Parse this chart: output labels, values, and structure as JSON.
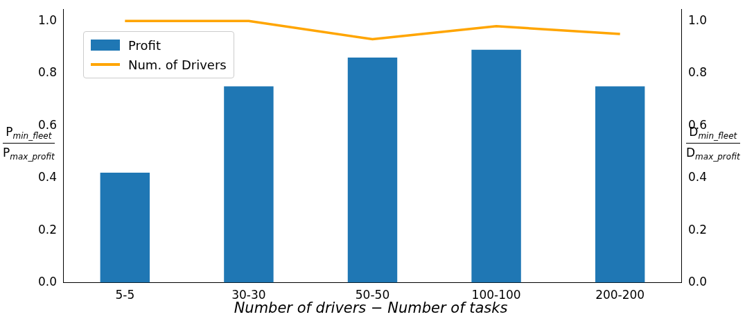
{
  "chart_data": {
    "type": "bar",
    "xlabel": "Number of drivers − Number of tasks",
    "ylabel": "P$_{min_fleet}$ P$_{max_profit}$",
    "y2label": "D$_{min_fleet}$ D$_{max_profit}$",
    "categories": [
      "5-5",
      "30-30",
      "50-50",
      "100-100",
      "200-200"
    ],
    "series": [
      {
        "name": "Profit",
        "color": "#1f77b4",
        "values": [
          0.42,
          0.75,
          0.86,
          0.89,
          0.75
        ]
      },
      {
        "name": "Num. of Drivers",
        "type": "line",
        "color": "#ffa500",
        "values": [
          1.0,
          1.0,
          0.93,
          0.98,
          0.95
        ]
      }
    ],
    "ylim": [
      0,
      1.045
    ],
    "yticks": [
      {
        "value": 0,
        "label": "0.0"
      },
      0.2,
      0.4,
      0.6,
      0.8,
      {
        "value": 1,
        "label": "1.0"
      }
    ],
    "y2lim": [
      0,
      1.045
    ],
    "y2ticks": [
      {
        "value": 0,
        "label": "0.0"
      },
      0.2,
      0.4,
      0.6,
      0.8,
      {
        "value": 1,
        "label": "1.0"
      }
    ],
    "legend": "top left"
  }
}
